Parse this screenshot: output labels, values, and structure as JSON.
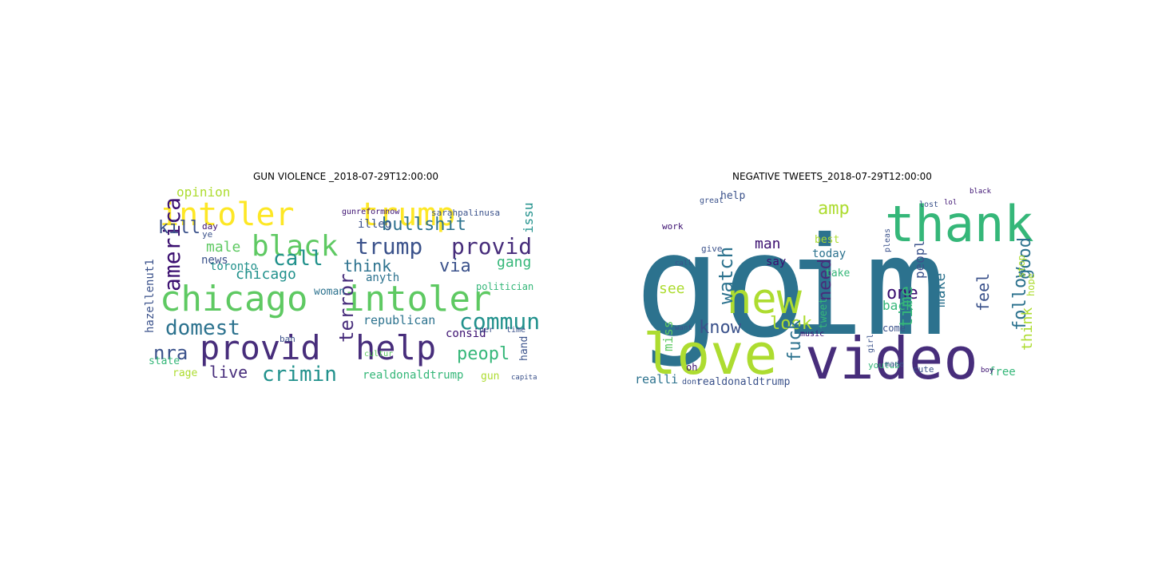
{
  "figure": {
    "panels": [
      {
        "title": "GUN VIOLENCE _2018-07-29T12:00:00",
        "words": [
          {
            "text": "chicago",
            "color": "#5ec962",
            "size": 44
          },
          {
            "text": "intoler",
            "color": "#5ec962",
            "size": 44
          },
          {
            "text": "intoler",
            "color": "#fde725",
            "size": 40
          },
          {
            "text": "trump",
            "color": "#fde725",
            "size": 40
          },
          {
            "text": "provid",
            "color": "#472d7b",
            "size": 42
          },
          {
            "text": "help",
            "color": "#472d7b",
            "size": 42
          },
          {
            "text": "black",
            "color": "#5ec962",
            "size": 36
          },
          {
            "text": "trump",
            "color": "#3b528b",
            "size": 28
          },
          {
            "text": "provid",
            "color": "#472d7b",
            "size": 28
          },
          {
            "text": "commun",
            "color": "#21918c",
            "size": 28
          },
          {
            "text": "america",
            "color": "#3b0f70",
            "size": 28
          },
          {
            "text": "domest",
            "color": "#2c728e",
            "size": 26
          },
          {
            "text": "crimin",
            "color": "#21918c",
            "size": 26
          },
          {
            "text": "terror",
            "color": "#472d7b",
            "size": 24
          },
          {
            "text": "call",
            "color": "#21918c",
            "size": 26
          },
          {
            "text": "bullshit",
            "color": "#2c728e",
            "size": 22
          },
          {
            "text": "nra",
            "color": "#3b528b",
            "size": 24
          },
          {
            "text": "peopl",
            "color": "#35b779",
            "size": 22
          },
          {
            "text": "kill",
            "color": "#3b528b",
            "size": 22
          },
          {
            "text": "via",
            "color": "#3b528b",
            "size": 22
          },
          {
            "text": "gang",
            "color": "#35b779",
            "size": 18
          },
          {
            "text": "think",
            "color": "#2c728e",
            "size": 20
          },
          {
            "text": "live",
            "color": "#472d7b",
            "size": 20
          },
          {
            "text": "chicago",
            "color": "#21918c",
            "size": 18
          },
          {
            "text": "male",
            "color": "#5ec962",
            "size": 18
          },
          {
            "text": "opinion",
            "color": "#addc30",
            "size": 16
          },
          {
            "text": "issu",
            "color": "#21918c",
            "size": 16
          },
          {
            "text": "republican",
            "color": "#2c728e",
            "size": 15
          },
          {
            "text": "realdonaldtrump",
            "color": "#35b779",
            "size": 14
          },
          {
            "text": "hazellenut1",
            "color": "#3b528b",
            "size": 14
          },
          {
            "text": "toronto",
            "color": "#21918c",
            "size": 14
          },
          {
            "text": "news",
            "color": "#3b528b",
            "size": 14
          },
          {
            "text": "anyth",
            "color": "#2c728e",
            "size": 14
          },
          {
            "text": "illeg",
            "color": "#3b528b",
            "size": 14
          },
          {
            "text": "consid",
            "color": "#3b0f70",
            "size": 14
          },
          {
            "text": "rage",
            "color": "#addc30",
            "size": 13
          },
          {
            "text": "state",
            "color": "#35b779",
            "size": 13
          },
          {
            "text": "woman",
            "color": "#2c728e",
            "size": 13
          },
          {
            "text": "politician",
            "color": "#35b779",
            "size": 12
          },
          {
            "text": "gun",
            "color": "#addc30",
            "size": 13
          },
          {
            "text": "hand",
            "color": "#3b528b",
            "size": 13
          },
          {
            "text": "sarahpalinusa",
            "color": "#3b528b",
            "size": 11
          },
          {
            "text": "gunreformnow",
            "color": "#3b0f70",
            "size": 10
          },
          {
            "text": "day",
            "color": "#3b0f70",
            "size": 11
          },
          {
            "text": "ban",
            "color": "#3b528b",
            "size": 11
          },
          {
            "text": "cultur",
            "color": "#5ec962",
            "size": 10
          },
          {
            "text": "per",
            "color": "#3b528b",
            "size": 10
          },
          {
            "text": "time",
            "color": "#3b528b",
            "size": 10
          },
          {
            "text": "capita",
            "color": "#3b528b",
            "size": 9
          },
          {
            "text": "ye",
            "color": "#3b528b",
            "size": 11
          }
        ]
      },
      {
        "title": "NEGATIVE TWEETS_2018-07-29T12:00:00",
        "words": [
          {
            "text": "go",
            "color": "#2c728e",
            "size": 180
          },
          {
            "text": "im",
            "color": "#2c728e",
            "size": 170
          },
          {
            "text": "love",
            "color": "#addc30",
            "size": 70
          },
          {
            "text": "video",
            "color": "#472d7b",
            "size": 72
          },
          {
            "text": "thank",
            "color": "#35b779",
            "size": 62
          },
          {
            "text": "new",
            "color": "#addc30",
            "size": 52
          },
          {
            "text": "amp",
            "color": "#addc30",
            "size": 22
          },
          {
            "text": "watch",
            "color": "#2c728e",
            "size": 24
          },
          {
            "text": "know",
            "color": "#3b528b",
            "size": 22
          },
          {
            "text": "look",
            "color": "#addc30",
            "size": 22
          },
          {
            "text": "fuck",
            "color": "#2c728e",
            "size": 22
          },
          {
            "text": "need",
            "color": "#472d7b",
            "size": 22
          },
          {
            "text": "one",
            "color": "#3b0f70",
            "size": 22
          },
          {
            "text": "time",
            "color": "#35b779",
            "size": 22
          },
          {
            "text": "follow",
            "color": "#2c728e",
            "size": 22
          },
          {
            "text": "good",
            "color": "#2c728e",
            "size": 22
          },
          {
            "text": "feel",
            "color": "#3b528b",
            "size": 20
          },
          {
            "text": "make",
            "color": "#2c728e",
            "size": 18
          },
          {
            "text": "man",
            "color": "#3b0f70",
            "size": 18
          },
          {
            "text": "see",
            "color": "#addc30",
            "size": 18
          },
          {
            "text": "think",
            "color": "#addc30",
            "size": 18
          },
          {
            "text": "back",
            "color": "#35b779",
            "size": 16
          },
          {
            "text": "peopl",
            "color": "#3b528b",
            "size": 16
          },
          {
            "text": "miss",
            "color": "#5ec962",
            "size": 16
          },
          {
            "text": "realli",
            "color": "#2c728e",
            "size": 15
          },
          {
            "text": "realdonaldtrump",
            "color": "#3b528b",
            "size": 13
          },
          {
            "text": "free",
            "color": "#35b779",
            "size": 14
          },
          {
            "text": "today",
            "color": "#2c728e",
            "size": 14
          },
          {
            "text": "help",
            "color": "#3b528b",
            "size": 13
          },
          {
            "text": "take",
            "color": "#35b779",
            "size": 13
          },
          {
            "text": "say",
            "color": "#3b0f70",
            "size": 14
          },
          {
            "text": "best",
            "color": "#addc30",
            "size": 13
          },
          {
            "text": "tweet",
            "color": "#35b779",
            "size": 13
          },
          {
            "text": "come",
            "color": "#3b528b",
            "size": 12
          },
          {
            "text": "hope",
            "color": "#addc30",
            "size": 12
          },
          {
            "text": "stop",
            "color": "#addc30",
            "size": 12
          },
          {
            "text": "youtub",
            "color": "#35b779",
            "size": 11
          },
          {
            "text": "work",
            "color": "#3b0f70",
            "size": 11
          },
          {
            "text": "give",
            "color": "#3b528b",
            "size": 11
          },
          {
            "text": "cute",
            "color": "#3b528b",
            "size": 11
          },
          {
            "text": "made",
            "color": "#3b528b",
            "size": 10
          },
          {
            "text": "girl",
            "color": "#3b528b",
            "size": 10
          },
          {
            "text": "music",
            "color": "#3b0f70",
            "size": 10
          },
          {
            "text": "pleas",
            "color": "#3b528b",
            "size": 10
          },
          {
            "text": "oh",
            "color": "#3b0f70",
            "size": 12
          },
          {
            "text": "dont",
            "color": "#3b528b",
            "size": 10
          },
          {
            "text": "great",
            "color": "#3b528b",
            "size": 10
          },
          {
            "text": "lost",
            "color": "#3b528b",
            "size": 10
          },
          {
            "text": "black",
            "color": "#3b0f70",
            "size": 9
          },
          {
            "text": "lol",
            "color": "#3b0f70",
            "size": 9
          },
          {
            "text": "boy",
            "color": "#3b0f70",
            "size": 9
          },
          {
            "text": "call",
            "color": "#3b528b",
            "size": 9
          },
          {
            "text": "want",
            "color": "#3b528b",
            "size": 9
          }
        ]
      }
    ]
  }
}
